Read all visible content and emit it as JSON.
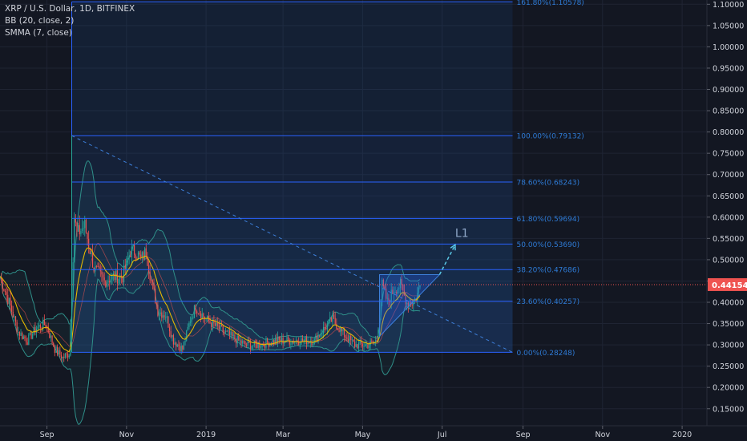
{
  "legend": {
    "title": "XRP / U.S. Dollar, 1D, BITFINEX",
    "bb": "BB (20, close, 2)",
    "smma": "SMMA (7, close)"
  },
  "colors": {
    "background": "#131722",
    "grid": "#1f2433",
    "axis_text": "#d1d4dc",
    "fib_line": "#2962ff",
    "fib_text": "#2e7bd6",
    "fib_fill": "#1e4b8a",
    "up": "#26a69a",
    "down": "#ef5350",
    "bb": "#2f8f89",
    "smma": "#e6b800",
    "price_tag": "#ef5350",
    "annotation": "#5ac8e6"
  },
  "chart_data": {
    "type": "candlestick",
    "symbol": "XRP / U.S. Dollar",
    "interval": "1D",
    "exchange": "BITFINEX",
    "current_price": 0.44154,
    "y_ticks": [
      0.15,
      0.2,
      0.25,
      0.3,
      0.35,
      0.4,
      0.45,
      0.5,
      0.55,
      0.6,
      0.65,
      0.7,
      0.75,
      0.8,
      0.85,
      0.9,
      0.95,
      1.0,
      1.05,
      1.1
    ],
    "y_tick_labels": [
      "0.15000",
      "0.20000",
      "0.25000",
      "0.30000",
      "0.35000",
      "0.40000",
      "0.45000",
      "0.50000",
      "0.55000",
      "0.60000",
      "0.65000",
      "0.70000",
      "0.75000",
      "0.80000",
      "0.85000",
      "0.90000",
      "0.95000",
      "1.00000",
      "1.05000",
      "1.10000"
    ],
    "ylim": [
      0.11,
      1.11
    ],
    "x_ticks": [
      {
        "date": "2018-09-01",
        "label": "Sep"
      },
      {
        "date": "2018-11-01",
        "label": "Nov"
      },
      {
        "date": "2019-01-01",
        "label": "2019"
      },
      {
        "date": "2019-03-01",
        "label": "Mar"
      },
      {
        "date": "2019-05-01",
        "label": "May"
      },
      {
        "date": "2019-07-01",
        "label": "Jul"
      },
      {
        "date": "2019-09-01",
        "label": "Sep"
      },
      {
        "date": "2019-11-01",
        "label": "Nov"
      },
      {
        "date": "2020-01-01",
        "label": "2020"
      }
    ],
    "xlim": [
      "2018-07-27",
      "2020-01-20"
    ],
    "fibonacci": {
      "start_date": "2018-09-20",
      "end_date": "2019-08-24",
      "levels": [
        {
          "label": "161.80%(1.10578)",
          "value": 1.10578
        },
        {
          "label": "100.00%(0.79132)",
          "value": 0.79132
        },
        {
          "label": "78.60%(0.68243)",
          "value": 0.68243
        },
        {
          "label": "61.80%(0.59694)",
          "value": 0.59694
        },
        {
          "label": "50.00%(0.53690)",
          "value": 0.5369
        },
        {
          "label": "38.20%(0.47686)",
          "value": 0.47686
        },
        {
          "label": "23.60%(0.40257)",
          "value": 0.40257
        },
        {
          "label": "0.00%(0.28248)",
          "value": 0.28248
        }
      ]
    },
    "trendline": {
      "from": {
        "date": "2018-09-20",
        "value": 0.79132
      },
      "to": {
        "date": "2019-08-24",
        "value": 0.28248
      }
    },
    "triangle": [
      {
        "date": "2019-05-14",
        "value": 0.465
      },
      {
        "date": "2019-06-29",
        "value": 0.465
      },
      {
        "date": "2019-05-14",
        "value": 0.32
      }
    ],
    "projection": {
      "label": "L1",
      "from": {
        "date": "2019-06-29",
        "value": 0.465
      },
      "to": {
        "date": "2019-07-11",
        "value": 0.535
      }
    },
    "price_anchors": [
      {
        "date": "2018-07-27",
        "value": 0.46
      },
      {
        "date": "2018-08-03",
        "value": 0.4
      },
      {
        "date": "2018-08-10",
        "value": 0.33
      },
      {
        "date": "2018-08-17",
        "value": 0.31
      },
      {
        "date": "2018-08-24",
        "value": 0.34
      },
      {
        "date": "2018-08-31",
        "value": 0.35
      },
      {
        "date": "2018-09-07",
        "value": 0.29
      },
      {
        "date": "2018-09-13",
        "value": 0.27
      },
      {
        "date": "2018-09-18",
        "value": 0.28
      },
      {
        "date": "2018-09-20",
        "value": 0.42
      },
      {
        "date": "2018-09-22",
        "value": 0.6
      },
      {
        "date": "2018-09-24",
        "value": 0.56
      },
      {
        "date": "2018-09-30",
        "value": 0.58
      },
      {
        "date": "2018-10-07",
        "value": 0.48
      },
      {
        "date": "2018-10-15",
        "value": 0.45
      },
      {
        "date": "2018-10-22",
        "value": 0.46
      },
      {
        "date": "2018-10-29",
        "value": 0.46
      },
      {
        "date": "2018-11-04",
        "value": 0.52
      },
      {
        "date": "2018-11-08",
        "value": 0.52
      },
      {
        "date": "2018-11-12",
        "value": 0.5
      },
      {
        "date": "2018-11-16",
        "value": 0.52
      },
      {
        "date": "2018-11-20",
        "value": 0.45
      },
      {
        "date": "2018-11-25",
        "value": 0.38
      },
      {
        "date": "2018-12-01",
        "value": 0.37
      },
      {
        "date": "2018-12-07",
        "value": 0.31
      },
      {
        "date": "2018-12-14",
        "value": 0.29
      },
      {
        "date": "2018-12-20",
        "value": 0.36
      },
      {
        "date": "2018-12-24",
        "value": 0.39
      },
      {
        "date": "2019-01-01",
        "value": 0.36
      },
      {
        "date": "2019-01-10",
        "value": 0.34
      },
      {
        "date": "2019-01-20",
        "value": 0.32
      },
      {
        "date": "2019-01-31",
        "value": 0.3
      },
      {
        "date": "2019-02-10",
        "value": 0.3
      },
      {
        "date": "2019-02-24",
        "value": 0.31
      },
      {
        "date": "2019-03-10",
        "value": 0.31
      },
      {
        "date": "2019-03-25",
        "value": 0.31
      },
      {
        "date": "2019-04-02",
        "value": 0.34
      },
      {
        "date": "2019-04-08",
        "value": 0.36
      },
      {
        "date": "2019-04-15",
        "value": 0.33
      },
      {
        "date": "2019-04-25",
        "value": 0.3
      },
      {
        "date": "2019-05-05",
        "value": 0.3
      },
      {
        "date": "2019-05-12",
        "value": 0.31
      },
      {
        "date": "2019-05-14",
        "value": 0.38
      },
      {
        "date": "2019-05-16",
        "value": 0.44
      },
      {
        "date": "2019-05-20",
        "value": 0.4
      },
      {
        "date": "2019-05-25",
        "value": 0.43
      },
      {
        "date": "2019-05-30",
        "value": 0.44
      },
      {
        "date": "2019-06-04",
        "value": 0.4
      },
      {
        "date": "2019-06-08",
        "value": 0.4
      },
      {
        "date": "2019-06-11",
        "value": 0.41
      },
      {
        "date": "2019-06-14",
        "value": 0.44
      }
    ]
  }
}
